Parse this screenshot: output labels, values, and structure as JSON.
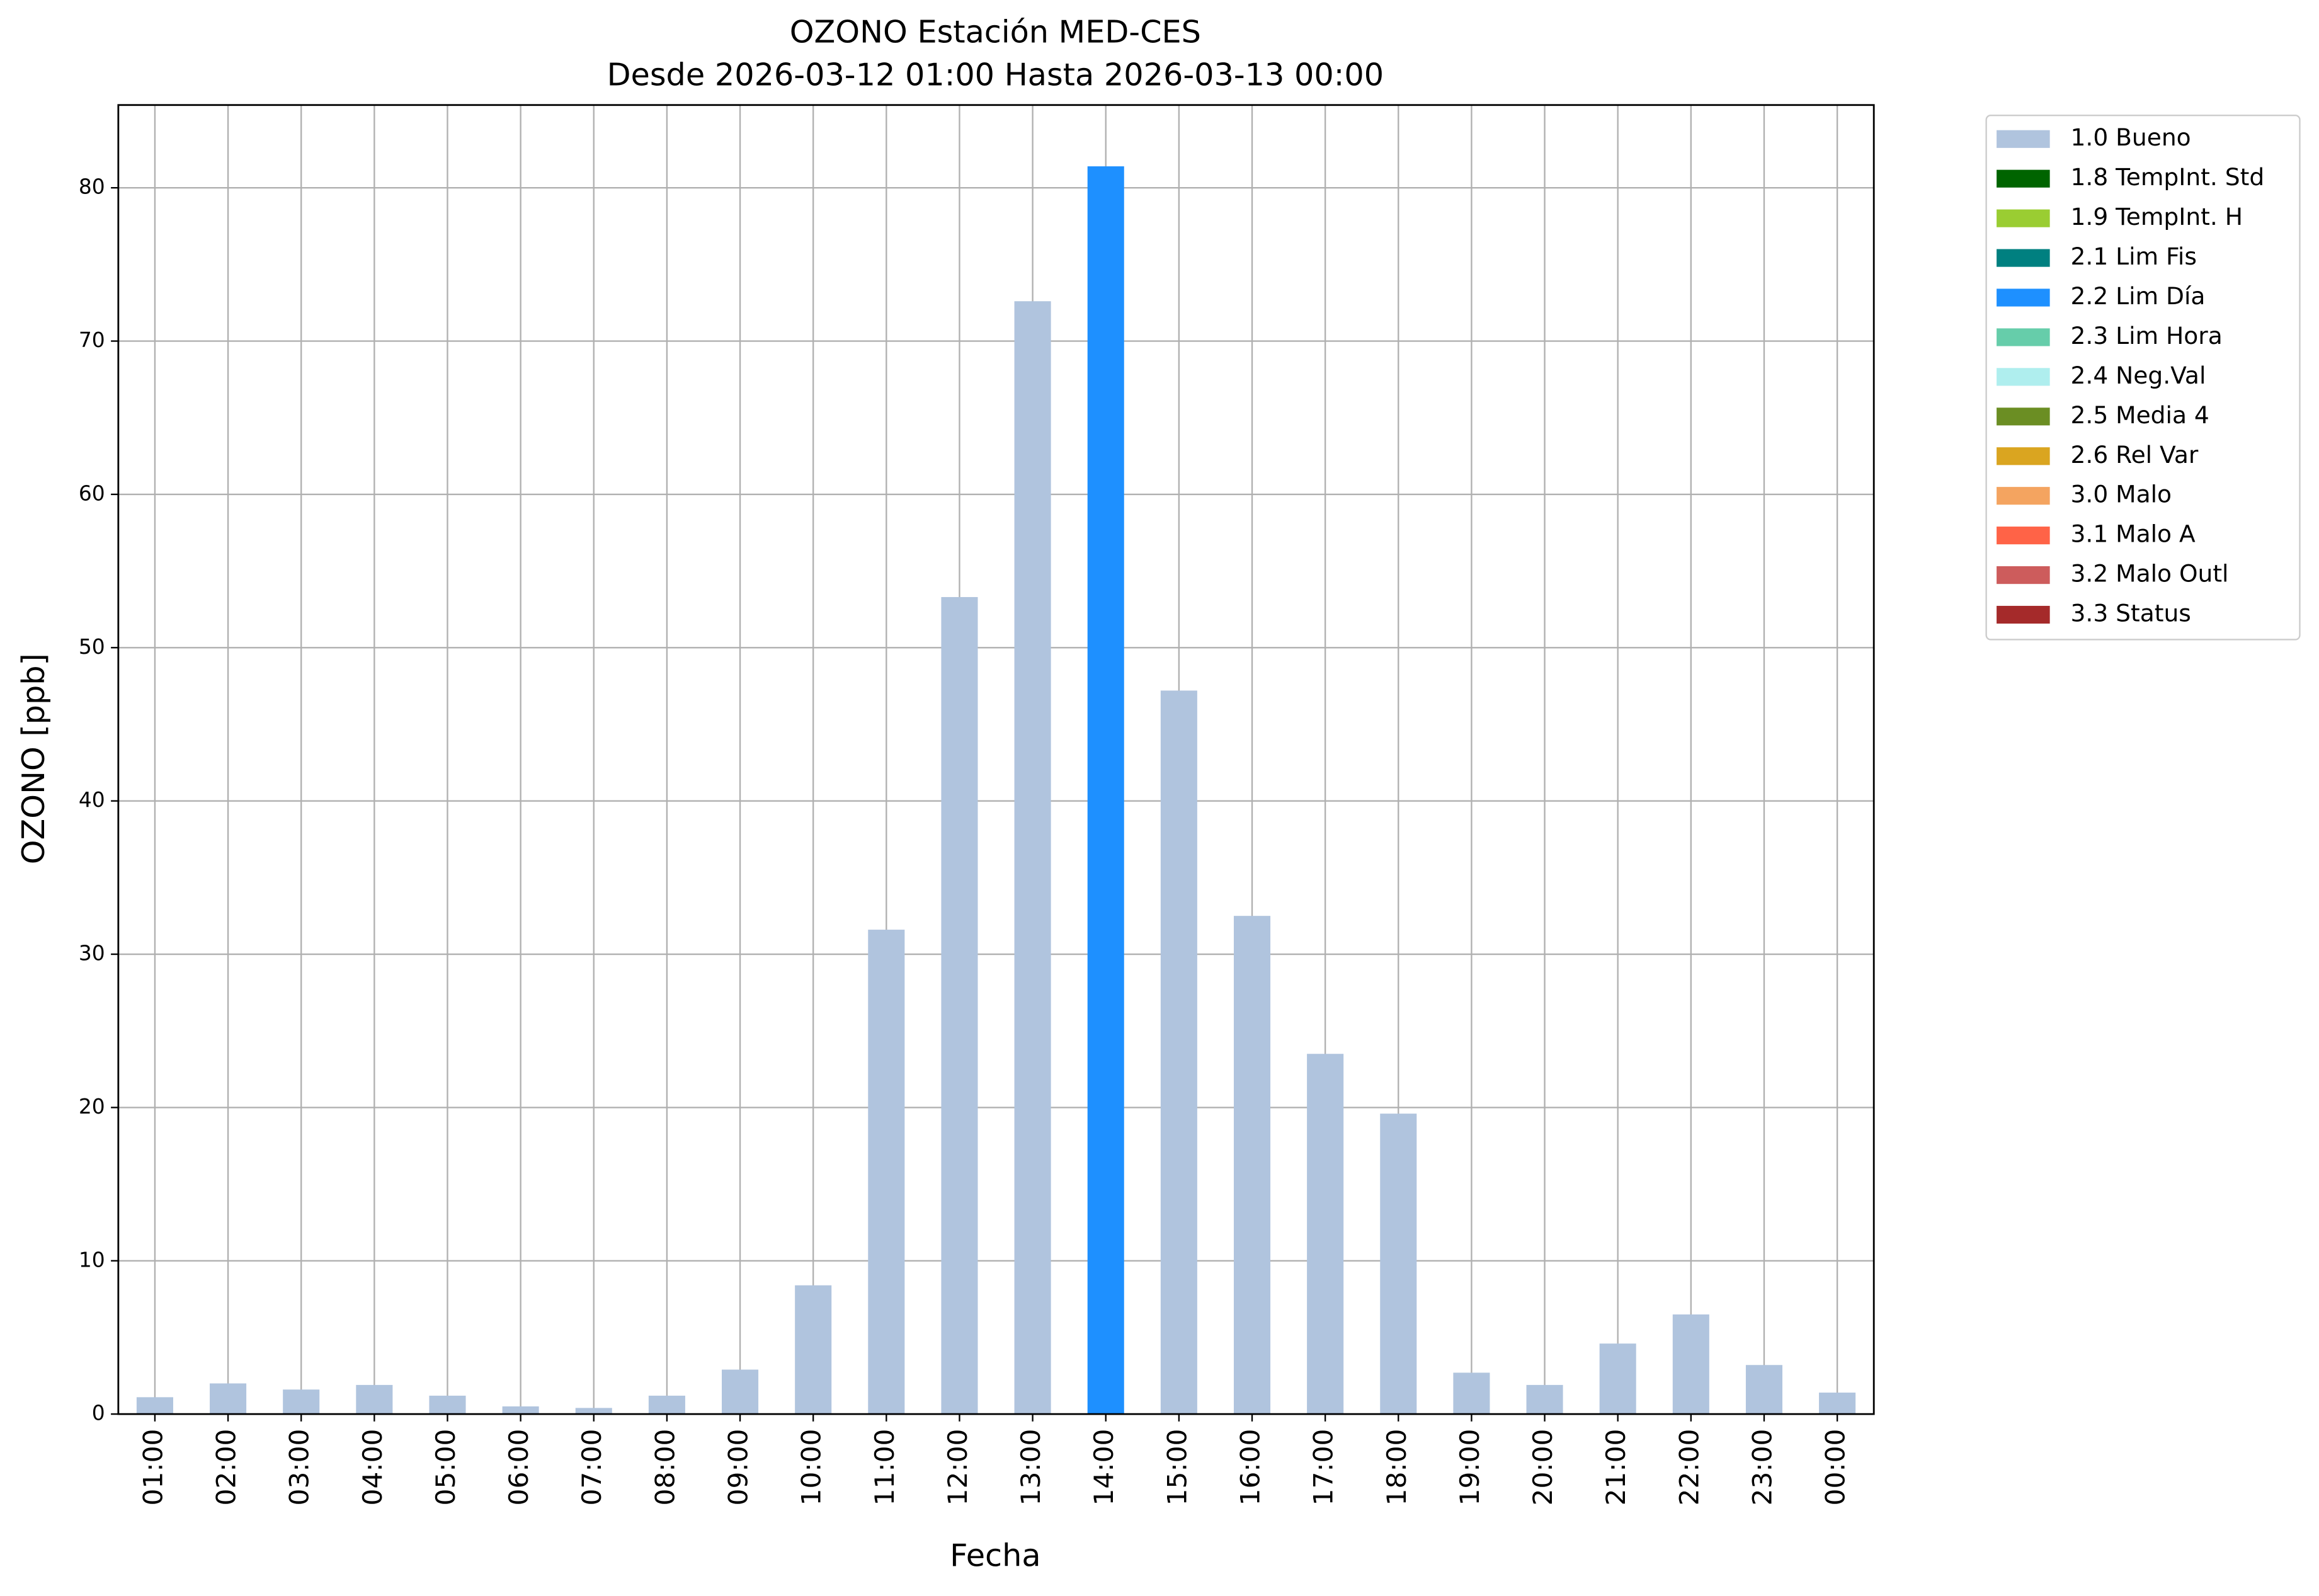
{
  "chart_data": {
    "type": "bar",
    "stacked": true,
    "title": "OZONO Estación MED-CES",
    "subtitle": "Desde 2026-03-12 01:00 Hasta 2026-03-13 00:00",
    "x_label": "Fecha",
    "y_label": "OZONO [ppb]",
    "categories": [
      "01:00",
      "02:00",
      "03:00",
      "04:00",
      "05:00",
      "06:00",
      "07:00",
      "08:00",
      "09:00",
      "10:00",
      "11:00",
      "12:00",
      "13:00",
      "14:00",
      "15:00",
      "16:00",
      "17:00",
      "18:00",
      "19:00",
      "20:00",
      "21:00",
      "22:00",
      "23:00",
      "00:00"
    ],
    "ylim": [
      0,
      85.4
    ],
    "yticks": [
      0,
      10,
      20,
      30,
      40,
      50,
      60,
      70,
      80
    ],
    "grid": true,
    "legend": "outside-upper-right",
    "series": [
      {
        "name": "1.0 Bueno",
        "color": "#b0c4de",
        "values": [
          1.1,
          2.0,
          1.6,
          1.9,
          1.2,
          0.5,
          0.4,
          1.2,
          2.9,
          8.4,
          31.6,
          53.3,
          72.6,
          null,
          47.2,
          32.5,
          23.5,
          19.6,
          2.7,
          1.9,
          4.6,
          6.5,
          3.2,
          1.4
        ]
      },
      {
        "name": "1.8 TempInt. Std",
        "color": "#006400",
        "values": [
          null,
          null,
          null,
          null,
          null,
          null,
          null,
          null,
          null,
          null,
          null,
          null,
          null,
          null,
          null,
          null,
          null,
          null,
          null,
          null,
          null,
          null,
          null,
          null
        ]
      },
      {
        "name": "1.9 TempInt. H",
        "color": "#9acd32",
        "values": [
          null,
          null,
          null,
          null,
          null,
          null,
          null,
          null,
          null,
          null,
          null,
          null,
          null,
          null,
          null,
          null,
          null,
          null,
          null,
          null,
          null,
          null,
          null,
          null
        ]
      },
      {
        "name": "2.1 Lim Fis",
        "color": "#008080",
        "values": [
          null,
          null,
          null,
          null,
          null,
          null,
          null,
          null,
          null,
          null,
          null,
          null,
          null,
          null,
          null,
          null,
          null,
          null,
          null,
          null,
          null,
          null,
          null,
          null
        ]
      },
      {
        "name": "2.2 Lim Día",
        "color": "#1e90ff",
        "values": [
          null,
          null,
          null,
          null,
          null,
          null,
          null,
          null,
          null,
          null,
          null,
          null,
          null,
          81.4,
          null,
          null,
          null,
          null,
          null,
          null,
          null,
          null,
          null,
          null
        ]
      },
      {
        "name": "2.3 Lim Hora",
        "color": "#66cdaa",
        "values": [
          null,
          null,
          null,
          null,
          null,
          null,
          null,
          null,
          null,
          null,
          null,
          null,
          null,
          null,
          null,
          null,
          null,
          null,
          null,
          null,
          null,
          null,
          null,
          null
        ]
      },
      {
        "name": "2.4 Neg.Val",
        "color": "#afeeee",
        "values": [
          null,
          null,
          null,
          null,
          null,
          null,
          null,
          null,
          null,
          null,
          null,
          null,
          null,
          null,
          null,
          null,
          null,
          null,
          null,
          null,
          null,
          null,
          null,
          null
        ]
      },
      {
        "name": "2.5 Media 4",
        "color": "#6b8e23",
        "values": [
          null,
          null,
          null,
          null,
          null,
          null,
          null,
          null,
          null,
          null,
          null,
          null,
          null,
          null,
          null,
          null,
          null,
          null,
          null,
          null,
          null,
          null,
          null,
          null
        ]
      },
      {
        "name": "2.6 Rel Var",
        "color": "#daa520",
        "values": [
          null,
          null,
          null,
          null,
          null,
          null,
          null,
          null,
          null,
          null,
          null,
          null,
          null,
          null,
          null,
          null,
          null,
          null,
          null,
          null,
          null,
          null,
          null,
          null
        ]
      },
      {
        "name": "3.0 Malo",
        "color": "#f4a460",
        "values": [
          null,
          null,
          null,
          null,
          null,
          null,
          null,
          null,
          null,
          null,
          null,
          null,
          null,
          null,
          null,
          null,
          null,
          null,
          null,
          null,
          null,
          null,
          null,
          null
        ]
      },
      {
        "name": "3.1 Malo A",
        "color": "#ff6347",
        "values": [
          null,
          null,
          null,
          null,
          null,
          null,
          null,
          null,
          null,
          null,
          null,
          null,
          null,
          null,
          null,
          null,
          null,
          null,
          null,
          null,
          null,
          null,
          null,
          null
        ]
      },
      {
        "name": "3.2 Malo Outl",
        "color": "#cd5c5c",
        "values": [
          null,
          null,
          null,
          null,
          null,
          null,
          null,
          null,
          null,
          null,
          null,
          null,
          null,
          null,
          null,
          null,
          null,
          null,
          null,
          null,
          null,
          null,
          null,
          null
        ]
      },
      {
        "name": "3.3 Status",
        "color": "#a52a2a",
        "values": [
          null,
          null,
          null,
          null,
          null,
          null,
          null,
          null,
          null,
          null,
          null,
          null,
          null,
          null,
          null,
          null,
          null,
          null,
          null,
          null,
          null,
          null,
          null,
          null
        ]
      }
    ]
  }
}
